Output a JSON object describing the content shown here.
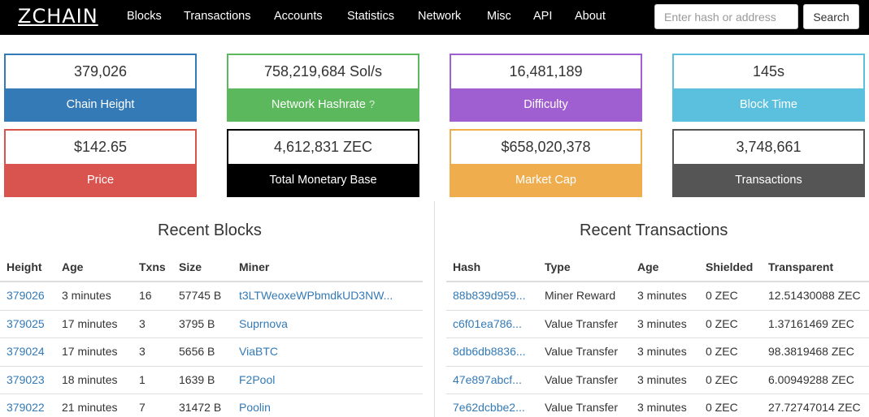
{
  "brand": "ZCHAIN",
  "nav": [
    "Blocks",
    "Transactions",
    "Accounts",
    "Statistics",
    "Network",
    "Misc",
    "API",
    "About"
  ],
  "search": {
    "placeholder": "Enter hash or address",
    "button": "Search"
  },
  "stats": [
    {
      "value": "379,026",
      "label": "Chain Height",
      "color": "#337ab7"
    },
    {
      "value": "758,219,684 Sol/s",
      "label": "Network Hashrate",
      "help": "?",
      "color": "#5cb85c"
    },
    {
      "value": "16,481,189",
      "label": "Difficulty",
      "color": "#a05fd0"
    },
    {
      "value": "145s",
      "label": "Block Time",
      "color": "#5bc0de"
    },
    {
      "value": "$142.65",
      "label": "Price",
      "color": "#d9534f"
    },
    {
      "value": "4,612,831 ZEC",
      "label": "Total Monetary Base",
      "color": "#000000"
    },
    {
      "value": "$658,020,378",
      "label": "Market Cap",
      "color": "#f0ad4e"
    },
    {
      "value": "3,748,661",
      "label": "Transactions",
      "color": "#555555"
    }
  ],
  "recent_blocks": {
    "title": "Recent Blocks",
    "columns": [
      "Height",
      "Age",
      "Txns",
      "Size",
      "Miner"
    ],
    "rows": [
      [
        "379026",
        "3 minutes",
        "16",
        "57745 B",
        "t3LTWeoxeWPbmdkUD3NW..."
      ],
      [
        "379025",
        "17 minutes",
        "3",
        "3795 B",
        "Suprnova"
      ],
      [
        "379024",
        "17 minutes",
        "3",
        "5656 B",
        "ViaBTC"
      ],
      [
        "379023",
        "18 minutes",
        "1",
        "1639 B",
        "F2Pool"
      ],
      [
        "379022",
        "21 minutes",
        "7",
        "31472 B",
        "Poolin"
      ]
    ]
  },
  "recent_transactions": {
    "title": "Recent Transactions",
    "columns": [
      "Hash",
      "Type",
      "Age",
      "Shielded",
      "Transparent"
    ],
    "rows": [
      [
        "88b839d959...",
        "Miner Reward",
        "3 minutes",
        "0 ZEC",
        "12.51430088 ZEC"
      ],
      [
        "c6f01ea786...",
        "Value Transfer",
        "3 minutes",
        "0 ZEC",
        "1.37161469 ZEC"
      ],
      [
        "8db6db8836...",
        "Value Transfer",
        "3 minutes",
        "0 ZEC",
        "98.3819468 ZEC"
      ],
      [
        "47e897abcf...",
        "Value Transfer",
        "3 minutes",
        "0 ZEC",
        "6.00949288 ZEC"
      ],
      [
        "7e62dcbbe2...",
        "Value Transfer",
        "3 minutes",
        "0 ZEC",
        "27.72747014 ZEC"
      ]
    ]
  }
}
